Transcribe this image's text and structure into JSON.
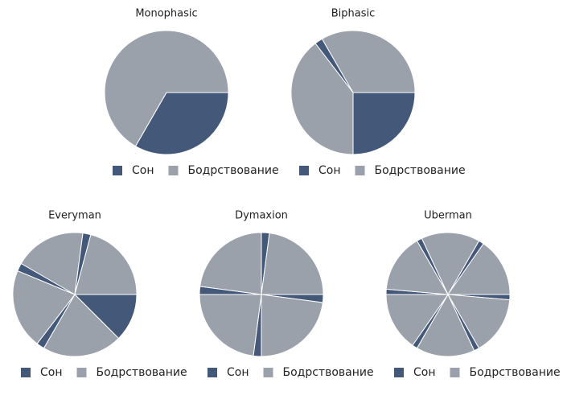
{
  "chart_data": [
    {
      "type": "pie",
      "title": "Monophasic",
      "startangle": 90,
      "categories": [
        "Сон",
        "Бодрствование"
      ],
      "values": [
        8,
        16
      ],
      "colors": [
        "#44587a",
        "#9aa1ab"
      ]
    },
    {
      "type": "pie",
      "title": "Biphasic",
      "startangle": 90,
      "categories": [
        "Сон",
        "Бодрствование",
        "Сон",
        "Бодрствование"
      ],
      "values": [
        6,
        9.5,
        0.5,
        8
      ],
      "colors": [
        "#44587a",
        "#9aa1ab",
        "#44587a",
        "#9aa1ab"
      ]
    },
    {
      "type": "pie",
      "title": "Everyman",
      "startangle": 90,
      "categories": [
        "Сон",
        "Бодрствование",
        "Сон",
        "Бодрствование",
        "Сон",
        "Бодрствование",
        "Сон",
        "Бодрствование"
      ],
      "values": [
        3,
        5,
        0.5,
        5,
        0.5,
        4.5,
        0.5,
        5
      ],
      "colors": [
        "#44587a",
        "#9aa1ab",
        "#44587a",
        "#9aa1ab",
        "#44587a",
        "#9aa1ab",
        "#44587a",
        "#9aa1ab"
      ]
    },
    {
      "type": "pie",
      "title": "Dymaxion",
      "startangle": 0,
      "categories": [
        "Сон",
        "Бодрствование",
        "Сон",
        "Бодрствование",
        "Сон",
        "Бодрствование",
        "Сон",
        "Бодрствование"
      ],
      "values": [
        0.5,
        5.5,
        0.5,
        5.5,
        0.5,
        5.5,
        0.5,
        5.5
      ],
      "colors": [
        "#44587a",
        "#9aa1ab",
        "#44587a",
        "#9aa1ab",
        "#44587a",
        "#9aa1ab",
        "#44587a",
        "#9aa1ab"
      ]
    },
    {
      "type": "pie",
      "title": "Uberman",
      "startangle": 30,
      "categories": [
        "Сон",
        "Бодрствование",
        "Сон",
        "Бодрствование",
        "Сон",
        "Бодрствование",
        "Сон",
        "Бодрствование",
        "Сон",
        "Бодрствование",
        "Сон",
        "Бодрствование"
      ],
      "values": [
        0.33,
        3.67,
        0.33,
        3.67,
        0.33,
        3.67,
        0.33,
        3.67,
        0.33,
        3.67,
        0.33,
        3.67
      ],
      "colors": [
        "#44587a",
        "#9aa1ab",
        "#44587a",
        "#9aa1ab",
        "#44587a",
        "#9aa1ab",
        "#44587a",
        "#9aa1ab",
        "#44587a",
        "#9aa1ab",
        "#44587a",
        "#9aa1ab"
      ]
    }
  ]
}
